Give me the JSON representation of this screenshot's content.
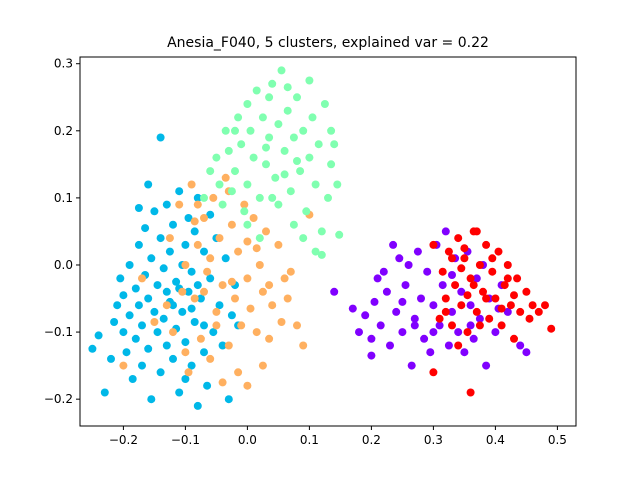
{
  "chart_data": {
    "type": "scatter",
    "title": "Anesia_F040, 5 clusters, explained var = 0.22",
    "xlabel": "",
    "ylabel": "",
    "xlim": [
      -0.27,
      0.53
    ],
    "ylim": [
      -0.24,
      0.31
    ],
    "xticks": [
      -0.2,
      -0.1,
      0.0,
      0.1,
      0.2,
      0.3,
      0.4,
      0.5
    ],
    "xtick_labels": [
      "−0.2",
      "−0.1",
      "0.0",
      "0.1",
      "0.2",
      "0.3",
      "0.4",
      "0.5"
    ],
    "yticks": [
      -0.2,
      -0.1,
      0.0,
      0.1,
      0.2,
      0.3
    ],
    "ytick_labels": [
      "−0.2",
      "−0.1",
      "0.0",
      "0.1",
      "0.2",
      "0.3"
    ],
    "grid": false,
    "legend": "none",
    "series": [
      {
        "color": "#00b8e8",
        "points": [
          [
            -0.25,
            -0.125
          ],
          [
            -0.24,
            -0.105
          ],
          [
            -0.23,
            -0.19
          ],
          [
            -0.22,
            -0.14
          ],
          [
            -0.215,
            -0.085
          ],
          [
            -0.21,
            -0.06
          ],
          [
            -0.205,
            -0.02
          ],
          [
            -0.2,
            -0.045
          ],
          [
            -0.2,
            -0.1
          ],
          [
            -0.195,
            -0.13
          ],
          [
            -0.19,
            0.0
          ],
          [
            -0.19,
            -0.075
          ],
          [
            -0.185,
            -0.17
          ],
          [
            -0.18,
            -0.035
          ],
          [
            -0.18,
            -0.11
          ],
          [
            -0.175,
            0.03
          ],
          [
            -0.175,
            -0.06
          ],
          [
            -0.17,
            -0.15
          ],
          [
            -0.17,
            -0.09
          ],
          [
            -0.165,
            0.055
          ],
          [
            -0.165,
            -0.015
          ],
          [
            -0.16,
            -0.05
          ],
          [
            -0.16,
            -0.125
          ],
          [
            -0.155,
            0.01
          ],
          [
            -0.155,
            -0.2
          ],
          [
            -0.15,
            0.08
          ],
          [
            -0.15,
            -0.07
          ],
          [
            -0.145,
            -0.1
          ],
          [
            -0.145,
            -0.03
          ],
          [
            -0.14,
            0.04
          ],
          [
            -0.14,
            -0.16
          ],
          [
            -0.135,
            -0.005
          ],
          [
            -0.135,
            -0.08
          ],
          [
            -0.13,
            0.09
          ],
          [
            -0.13,
            -0.12
          ],
          [
            -0.125,
            0.02
          ],
          [
            -0.125,
            -0.055
          ],
          [
            -0.12,
            -0.14
          ],
          [
            -0.12,
            0.06
          ],
          [
            -0.115,
            -0.025
          ],
          [
            -0.115,
            -0.095
          ],
          [
            -0.11,
            0.11
          ],
          [
            -0.11,
            -0.19
          ],
          [
            -0.105,
            0.0
          ],
          [
            -0.105,
            -0.07
          ],
          [
            -0.1,
            0.03
          ],
          [
            -0.1,
            -0.115
          ],
          [
            -0.095,
            -0.04
          ],
          [
            -0.095,
            0.07
          ],
          [
            -0.09,
            -0.15
          ],
          [
            -0.09,
            -0.01
          ],
          [
            -0.085,
            0.05
          ],
          [
            -0.085,
            -0.085
          ],
          [
            -0.08,
            -0.21
          ],
          [
            -0.08,
            0.1
          ],
          [
            -0.075,
            -0.05
          ],
          [
            -0.07,
            -0.13
          ],
          [
            -0.07,
            0.02
          ],
          [
            -0.065,
            -0.18
          ],
          [
            -0.06,
            -0.02
          ],
          [
            -0.06,
            0.075
          ],
          [
            -0.055,
            -0.1
          ],
          [
            -0.05,
            0.04
          ],
          [
            -0.045,
            -0.06
          ],
          [
            -0.04,
            -0.12
          ],
          [
            -0.035,
            0.01
          ],
          [
            -0.03,
            -0.2
          ],
          [
            -0.025,
            -0.075
          ],
          [
            -0.02,
            -0.03
          ],
          [
            -0.015,
            -0.09
          ],
          [
            -0.175,
            0.085
          ],
          [
            -0.16,
            0.12
          ],
          [
            -0.14,
            0.19
          ],
          [
            -0.13,
            -0.04
          ],
          [
            -0.12,
            -0.06
          ],
          [
            -0.11,
            -0.035
          ],
          [
            -0.1,
            -0.17
          ],
          [
            -0.09,
            -0.065
          ],
          [
            -0.08,
            -0.03
          ],
          [
            -0.07,
            -0.09
          ]
        ]
      },
      {
        "color": "#ffb060",
        "points": [
          [
            -0.2,
            -0.15
          ],
          [
            -0.17,
            -0.02
          ],
          [
            -0.15,
            -0.085
          ],
          [
            -0.13,
            -0.06
          ],
          [
            -0.125,
            0.04
          ],
          [
            -0.12,
            -0.1
          ],
          [
            -0.11,
            0.09
          ],
          [
            -0.105,
            -0.04
          ],
          [
            -0.1,
            0.0
          ],
          [
            -0.095,
            -0.16
          ],
          [
            -0.09,
            0.12
          ],
          [
            -0.085,
            -0.05
          ],
          [
            -0.08,
            0.03
          ],
          [
            -0.075,
            -0.11
          ],
          [
            -0.07,
            0.07
          ],
          [
            -0.065,
            -0.01
          ],
          [
            -0.06,
            -0.14
          ],
          [
            -0.055,
            0.1
          ],
          [
            -0.05,
            -0.07
          ],
          [
            -0.045,
            0.04
          ],
          [
            -0.04,
            -0.03
          ],
          [
            -0.035,
            0.13
          ],
          [
            -0.03,
            -0.12
          ],
          [
            -0.025,
            0.06
          ],
          [
            -0.02,
            -0.05
          ],
          [
            -0.015,
            0.02
          ],
          [
            -0.01,
            -0.09
          ],
          [
            -0.005,
            0.09
          ],
          [
            0.0,
            -0.02
          ],
          [
            0.0,
            0.035
          ],
          [
            0.005,
            -0.065
          ],
          [
            0.01,
            0.07
          ],
          [
            0.015,
            -0.1
          ],
          [
            0.02,
            0.0
          ],
          [
            0.025,
            -0.04
          ],
          [
            0.03,
            0.05
          ],
          [
            0.035,
            -0.03
          ],
          [
            0.04,
            -0.06
          ],
          [
            0.05,
            0.03
          ],
          [
            0.055,
            -0.085
          ],
          [
            0.06,
            -0.02
          ],
          [
            0.065,
            -0.05
          ],
          [
            0.07,
            -0.01
          ],
          [
            0.08,
            -0.09
          ],
          [
            0.09,
            -0.12
          ],
          [
            0.1,
            0.075
          ],
          [
            0.025,
            -0.15
          ],
          [
            -0.04,
            -0.175
          ],
          [
            -0.06,
            0.01
          ],
          [
            -0.085,
            0.065
          ],
          [
            -0.015,
            -0.16
          ],
          [
            0.0,
            -0.18
          ],
          [
            0.035,
            -0.11
          ],
          [
            -0.03,
            0.11
          ],
          [
            -0.05,
            -0.09
          ],
          [
            -0.025,
            -0.025
          ],
          [
            0.015,
            0.025
          ],
          [
            -0.07,
            -0.04
          ],
          [
            -0.1,
            -0.13
          ],
          [
            -0.08,
            0.09
          ]
        ]
      },
      {
        "color": "#80ffb0",
        "points": [
          [
            -0.07,
            0.1
          ],
          [
            -0.06,
            0.14
          ],
          [
            -0.05,
            0.16
          ],
          [
            -0.045,
            0.12
          ],
          [
            -0.04,
            0.09
          ],
          [
            -0.035,
            0.2
          ],
          [
            -0.03,
            0.17
          ],
          [
            -0.025,
            0.11
          ],
          [
            -0.02,
            0.14
          ],
          [
            -0.015,
            0.22
          ],
          [
            -0.01,
            0.18
          ],
          [
            -0.005,
            0.08
          ],
          [
            0.0,
            0.12
          ],
          [
            0.005,
            0.2
          ],
          [
            0.01,
            0.16
          ],
          [
            0.015,
            0.26
          ],
          [
            0.02,
            0.1
          ],
          [
            0.025,
            0.22
          ],
          [
            0.03,
            0.15
          ],
          [
            0.035,
            0.19
          ],
          [
            0.04,
            0.27
          ],
          [
            0.045,
            0.13
          ],
          [
            0.05,
            0.21
          ],
          [
            0.055,
            0.29
          ],
          [
            0.06,
            0.17
          ],
          [
            0.065,
            0.23
          ],
          [
            0.07,
            0.11
          ],
          [
            0.075,
            0.19
          ],
          [
            0.08,
            0.25
          ],
          [
            0.085,
            0.14
          ],
          [
            0.09,
            0.2
          ],
          [
            0.095,
            0.08
          ],
          [
            0.1,
            0.16
          ],
          [
            0.105,
            0.22
          ],
          [
            0.11,
            0.12
          ],
          [
            0.115,
            0.18
          ],
          [
            0.12,
            0.05
          ],
          [
            0.125,
            0.24
          ],
          [
            0.13,
            0.1
          ],
          [
            0.135,
            0.15
          ],
          [
            0.14,
            0.18
          ],
          [
            0.145,
            0.12
          ],
          [
            0.148,
            0.045
          ],
          [
            0.12,
            0.015
          ],
          [
            0.1,
            0.275
          ],
          [
            0.065,
            0.265
          ],
          [
            0.035,
            0.25
          ],
          [
            0.0,
            0.24
          ],
          [
            -0.02,
            0.2
          ],
          [
            0.0,
            0.06
          ],
          [
            0.02,
            0.04
          ],
          [
            0.05,
            0.09
          ],
          [
            0.075,
            0.06
          ],
          [
            0.09,
            0.04
          ],
          [
            0.11,
            0.02
          ],
          [
            0.135,
            0.2
          ],
          [
            0.08,
            0.155
          ],
          [
            0.06,
            0.135
          ],
          [
            0.04,
            0.1
          ],
          [
            0.03,
            0.175
          ]
        ]
      },
      {
        "color": "#8000ff",
        "points": [
          [
            0.14,
            -0.04
          ],
          [
            0.17,
            -0.065
          ],
          [
            0.18,
            -0.1
          ],
          [
            0.19,
            -0.075
          ],
          [
            0.2,
            -0.11
          ],
          [
            0.2,
            -0.135
          ],
          [
            0.205,
            -0.055
          ],
          [
            0.21,
            -0.02
          ],
          [
            0.215,
            -0.09
          ],
          [
            0.22,
            -0.01
          ],
          [
            0.225,
            -0.04
          ],
          [
            0.23,
            -0.12
          ],
          [
            0.235,
            0.03
          ],
          [
            0.24,
            -0.07
          ],
          [
            0.245,
            0.01
          ],
          [
            0.25,
            -0.1
          ],
          [
            0.255,
            -0.03
          ],
          [
            0.26,
            0.0
          ],
          [
            0.265,
            -0.15
          ],
          [
            0.27,
            -0.08
          ],
          [
            0.275,
            0.02
          ],
          [
            0.28,
            -0.05
          ],
          [
            0.285,
            -0.11
          ],
          [
            0.29,
            -0.01
          ],
          [
            0.295,
            -0.13
          ],
          [
            0.3,
            -0.06
          ],
          [
            0.305,
            0.03
          ],
          [
            0.31,
            -0.09
          ],
          [
            0.315,
            -0.03
          ],
          [
            0.32,
            0.05
          ],
          [
            0.325,
            -0.12
          ],
          [
            0.33,
            -0.07
          ],
          [
            0.335,
            0.01
          ],
          [
            0.34,
            -0.1
          ],
          [
            0.345,
            -0.04
          ],
          [
            0.35,
            -0.13
          ],
          [
            0.355,
            0.02
          ],
          [
            0.36,
            -0.06
          ],
          [
            0.365,
            -0.11
          ],
          [
            0.37,
            -0.02
          ],
          [
            0.375,
            -0.08
          ],
          [
            0.38,
            0.0
          ],
          [
            0.385,
            -0.15
          ],
          [
            0.39,
            -0.05
          ],
          [
            0.4,
            -0.1
          ],
          [
            0.41,
            -0.03
          ],
          [
            0.42,
            -0.07
          ],
          [
            0.44,
            -0.12
          ],
          [
            0.45,
            -0.13
          ],
          [
            0.25,
            -0.055
          ],
          [
            0.27,
            -0.09
          ],
          [
            0.3,
            -0.1
          ],
          [
            0.33,
            -0.015
          ],
          [
            0.36,
            -0.09
          ],
          [
            0.405,
            -0.065
          ]
        ]
      },
      {
        "color": "#ff0000",
        "points": [
          [
            0.3,
            0.03
          ],
          [
            0.3,
            -0.16
          ],
          [
            0.31,
            -0.08
          ],
          [
            0.315,
            -0.01
          ],
          [
            0.32,
            -0.05
          ],
          [
            0.325,
            0.02
          ],
          [
            0.33,
            -0.09
          ],
          [
            0.335,
            -0.03
          ],
          [
            0.34,
            0.04
          ],
          [
            0.345,
            -0.06
          ],
          [
            0.35,
            0.01
          ],
          [
            0.355,
            -0.1
          ],
          [
            0.36,
            -0.02
          ],
          [
            0.365,
            0.05
          ],
          [
            0.37,
            -0.07
          ],
          [
            0.375,
            0.0
          ],
          [
            0.38,
            -0.04
          ],
          [
            0.385,
            0.03
          ],
          [
            0.39,
            -0.08
          ],
          [
            0.395,
            -0.01
          ],
          [
            0.4,
            -0.05
          ],
          [
            0.405,
            0.02
          ],
          [
            0.41,
            -0.09
          ],
          [
            0.415,
            -0.03
          ],
          [
            0.42,
            0.0
          ],
          [
            0.425,
            -0.06
          ],
          [
            0.43,
            -0.11
          ],
          [
            0.435,
            -0.02
          ],
          [
            0.44,
            -0.07
          ],
          [
            0.45,
            -0.04
          ],
          [
            0.46,
            -0.06
          ],
          [
            0.47,
            -0.07
          ],
          [
            0.49,
            -0.095
          ],
          [
            0.48,
            -0.06
          ],
          [
            0.455,
            -0.08
          ],
          [
            0.36,
            -0.19
          ],
          [
            0.37,
            0.05
          ],
          [
            0.35,
            0.025
          ],
          [
            0.34,
            -0.12
          ],
          [
            0.33,
            0.01
          ],
          [
            0.32,
            -0.07
          ],
          [
            0.365,
            -0.03
          ],
          [
            0.375,
            -0.09
          ],
          [
            0.385,
            -0.05
          ],
          [
            0.395,
            0.01
          ],
          [
            0.41,
            -0.065
          ],
          [
            0.42,
            -0.02
          ],
          [
            0.43,
            -0.045
          ],
          [
            0.345,
            -0.005
          ],
          [
            0.355,
            -0.045
          ]
        ]
      }
    ]
  }
}
